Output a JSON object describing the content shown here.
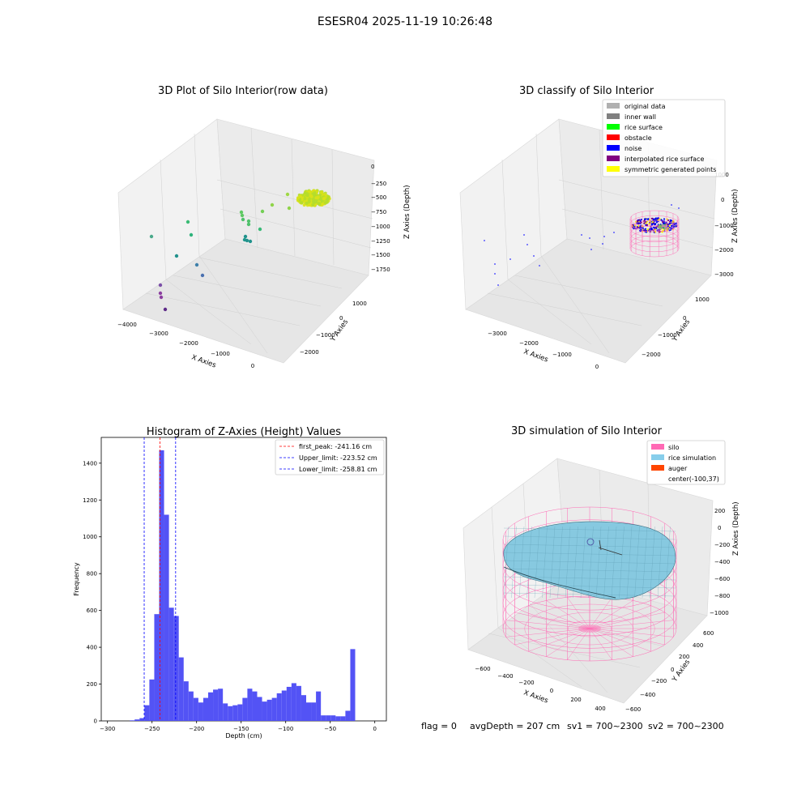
{
  "suptitle": "ESESR04 2025-11-19 10:26:48",
  "status": {
    "flag": "flag = 0",
    "avg_depth": "avgDepth = 207 cm",
    "sv1": "sv1 = 700~2300",
    "sv2": "sv2 = 700~2300"
  },
  "panel_raw": {
    "title": "3D Plot of Silo Interior(row data)",
    "xlabel": "X Axies",
    "ylabel": "Y Axies",
    "zlabel": "Z Axies (Depth)",
    "x_ticks": [
      "−4000",
      "−3000",
      "−2000",
      "−1000",
      "0"
    ],
    "y_ticks": [
      "1000",
      "0",
      "−1000",
      "−2000"
    ],
    "z_ticks": [
      "0",
      "−250",
      "−500",
      "−750",
      "−1000",
      "−1250",
      "−1500",
      "−1750"
    ]
  },
  "panel_classify": {
    "title": "3D classify of Silo Interior",
    "xlabel": "X Axies",
    "ylabel": "Y Axies",
    "zlabel": "Z Axies (Depth)",
    "x_ticks": [
      "−3000",
      "−2000",
      "−1000",
      "0"
    ],
    "y_ticks": [
      "1000",
      "0",
      "−1000",
      "−2000"
    ],
    "z_ticks": [
      "1000",
      "0",
      "−1000",
      "−2000",
      "−3000"
    ],
    "legend": [
      {
        "label": "original data",
        "color": "#b0b0b0"
      },
      {
        "label": "inner wall",
        "color": "#808080"
      },
      {
        "label": "rice surface",
        "color": "#00ff00"
      },
      {
        "label": "obstacle",
        "color": "#ff0000"
      },
      {
        "label": "noise",
        "color": "#0000ff"
      },
      {
        "label": "interpolated rice surface",
        "color": "#800080"
      },
      {
        "label": "symmetric generated points",
        "color": "#ffff00"
      }
    ]
  },
  "panel_sim": {
    "title": "3D simulation of Silo Interior",
    "xlabel": "X Axies",
    "ylabel": "Y Axies",
    "zlabel": "Z Axies (Depth)",
    "x_ticks": [
      "−600",
      "−400",
      "−200",
      "0",
      "200",
      "400"
    ],
    "y_ticks": [
      "600",
      "400",
      "200",
      "0",
      "−200",
      "−400",
      "−600"
    ],
    "z_ticks": [
      "200",
      "0",
      "−200",
      "−400",
      "−600",
      "−800",
      "−1000"
    ],
    "legend": [
      {
        "label": "silo",
        "color": "#ff69b4"
      },
      {
        "label": "rice simulation",
        "color": "#87ceeb"
      },
      {
        "label": "auger",
        "color": "#ff4500"
      },
      {
        "label": "center(-100,37)",
        "color": ""
      }
    ]
  },
  "chart_data": {
    "type": "bar",
    "title": "Histogram of Z-Axies (Height) Values",
    "xlabel": "Depth (cm)",
    "ylabel": "Frequency",
    "xlim": [
      -307,
      13
    ],
    "ylim": [
      0,
      1540
    ],
    "x_ticks": [
      -300,
      -250,
      -200,
      -150,
      -100,
      -50,
      0
    ],
    "y_ticks": [
      0,
      200,
      400,
      600,
      800,
      1000,
      1200,
      1400
    ],
    "bin_start": -275,
    "bin_width": 5.5,
    "values": [
      3,
      8,
      15,
      85,
      225,
      580,
      1470,
      1120,
      615,
      570,
      345,
      215,
      160,
      125,
      100,
      125,
      155,
      170,
      175,
      95,
      80,
      85,
      90,
      125,
      175,
      160,
      130,
      105,
      115,
      125,
      150,
      165,
      185,
      205,
      190,
      140,
      100,
      100,
      160,
      30,
      30,
      30,
      25,
      25,
      55,
      390
    ],
    "bar_color": "#5050f5",
    "lines": [
      {
        "x": -241.16,
        "color": "#ff0000",
        "label": "first_peak: -241.16 cm"
      },
      {
        "x": -223.52,
        "color": "#0000ff",
        "label": "Upper_limit: -223.52 cm"
      },
      {
        "x": -258.81,
        "color": "#0000ff",
        "label": "Lower_limit: -258.81 cm"
      }
    ],
    "legend_position": "top-right"
  }
}
